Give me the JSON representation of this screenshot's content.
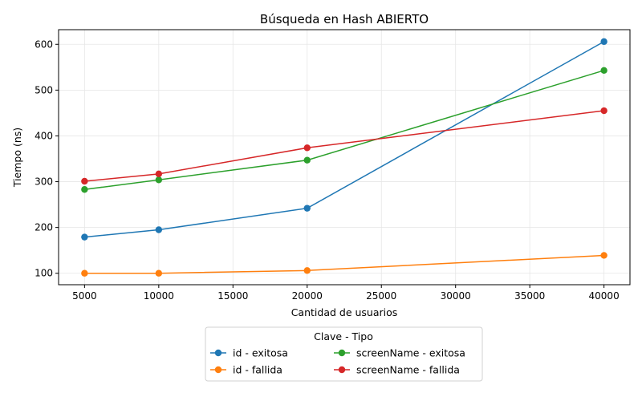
{
  "chart_data": {
    "type": "line",
    "title": "Búsqueda en Hash ABIERTO",
    "xlabel": "Cantidad de usuarios",
    "ylabel": "Tiempo (ns)",
    "x": [
      5000,
      10000,
      20000,
      40000
    ],
    "xlim": [
      3250,
      41750
    ],
    "ylim": [
      75,
      632
    ],
    "xticks": [
      5000,
      10000,
      15000,
      20000,
      25000,
      30000,
      35000,
      40000
    ],
    "yticks": [
      100,
      200,
      300,
      400,
      500,
      600
    ],
    "grid": true,
    "legend": {
      "title": "Clave - Tipo",
      "placement": "below-center",
      "columns": 2
    },
    "series": [
      {
        "name": "id - exitosa",
        "color": "#1f77b4",
        "values": [
          179,
          195,
          242,
          606
        ]
      },
      {
        "name": "id - fallida",
        "color": "#ff7f0e",
        "values": [
          100,
          100,
          106,
          139
        ]
      },
      {
        "name": "screenName - exitosa",
        "color": "#2ca02c",
        "values": [
          283,
          304,
          347,
          543
        ]
      },
      {
        "name": "screenName - fallida",
        "color": "#d62728",
        "values": [
          301,
          317,
          374,
          455
        ]
      }
    ]
  }
}
